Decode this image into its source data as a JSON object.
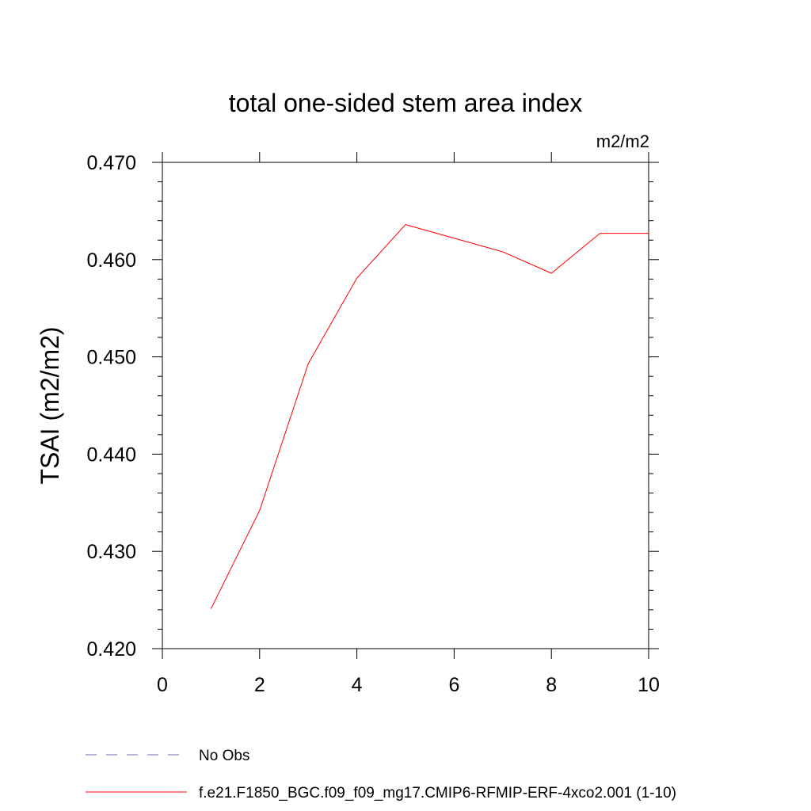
{
  "chart_data": {
    "type": "line",
    "title": "total one-sided stem area index",
    "units_label": "m2/m2",
    "ylabel": "TSAI  (m2/m2)",
    "xlabel": "",
    "xlim": [
      0,
      10
    ],
    "ylim": [
      0.42,
      0.47
    ],
    "x_ticks": [
      0,
      2,
      4,
      6,
      8,
      10
    ],
    "x_tick_labels": [
      "0",
      "2",
      "4",
      "6",
      "8",
      "10"
    ],
    "y_ticks": [
      0.42,
      0.43,
      0.44,
      0.45,
      0.46,
      0.47
    ],
    "y_tick_labels": [
      "0.420",
      "0.430",
      "0.440",
      "0.450",
      "0.460",
      "0.470"
    ],
    "grid": false,
    "legend_position": "bottom-left",
    "series": [
      {
        "name": "No Obs",
        "color": "#6f6fb0",
        "dash": true,
        "x": [],
        "y": []
      },
      {
        "name": "f.e21.F1850_BGC.f09_f09_mg17.CMIP6-RFMIP-ERF-4xco2.001 (1-10)",
        "color": "#ff0000",
        "dash": false,
        "x": [
          1,
          2,
          3,
          4,
          5,
          6,
          7,
          8,
          9,
          10
        ],
        "y": [
          0.4241,
          0.4342,
          0.4493,
          0.4581,
          0.4636,
          0.4622,
          0.4608,
          0.4586,
          0.4627,
          0.4627
        ]
      }
    ]
  }
}
